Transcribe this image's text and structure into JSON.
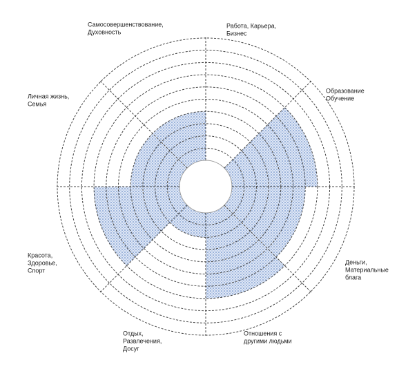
{
  "chart_data": {
    "type": "polar-area",
    "categories": [
      [
        "Работа, Карьера,",
        "Бизнес"
      ],
      [
        "Образование",
        "Обучение"
      ],
      [
        "Деньги,",
        "Материальные",
        "блага"
      ],
      [
        "Отношения с",
        "другими людьми"
      ],
      [
        "Отдых,",
        "Развлечения,",
        "Досуг"
      ],
      [
        "Красота,",
        "Здоровье,",
        "Спорт"
      ],
      [
        "Личная жизнь,",
        "Семья"
      ],
      [
        "Самосовершенствование,",
        "Духовность"
      ]
    ],
    "values": [
      0,
      7,
      6,
      7,
      2,
      7,
      4,
      4
    ],
    "color": "#5b82c4",
    "rlim": [
      0,
      10
    ],
    "rticks": [
      0,
      1,
      2,
      3,
      4,
      5,
      6,
      7,
      8,
      9,
      10
    ]
  }
}
